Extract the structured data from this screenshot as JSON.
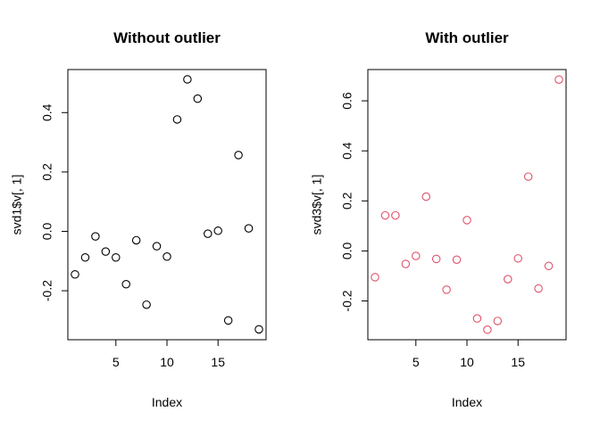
{
  "chart_data": [
    {
      "type": "scatter",
      "title": "Without outlier",
      "xlabel": "Index",
      "ylabel": "svd1$v[, 1]",
      "point_color": "#000000",
      "xlim": [
        0.3,
        19.7
      ],
      "ylim": [
        -0.365,
        0.545
      ],
      "x_ticks": [
        5,
        10,
        15
      ],
      "y_ticks": [
        -0.2,
        0.0,
        0.2,
        0.4
      ],
      "y_tick_labels": [
        "-0.2",
        "0.0",
        "0.2",
        "0.4"
      ],
      "x": [
        1,
        2,
        3,
        4,
        5,
        6,
        7,
        8,
        9,
        10,
        11,
        12,
        13,
        14,
        15,
        16,
        17,
        18,
        19
      ],
      "y": [
        -0.145,
        -0.088,
        -0.017,
        -0.068,
        -0.088,
        -0.178,
        -0.03,
        -0.247,
        -0.05,
        -0.085,
        0.377,
        0.512,
        0.447,
        -0.008,
        0.002,
        -0.3,
        0.257,
        0.01,
        -0.33
      ]
    },
    {
      "type": "scatter",
      "title": "With outlier",
      "xlabel": "Index",
      "ylabel": "svd3$v[, 1]",
      "point_color": "#DF536B",
      "xlim": [
        0.3,
        19.7
      ],
      "ylim": [
        -0.355,
        0.725
      ],
      "x_ticks": [
        5,
        10,
        15
      ],
      "y_ticks": [
        -0.2,
        0.0,
        0.2,
        0.4,
        0.6
      ],
      "y_tick_labels": [
        "-0.2",
        "0.0",
        "0.2",
        "0.4",
        "0.6"
      ],
      "x": [
        1,
        2,
        3,
        4,
        5,
        6,
        7,
        8,
        9,
        10,
        11,
        12,
        13,
        14,
        15,
        16,
        17,
        18,
        19
      ],
      "y": [
        -0.105,
        0.142,
        0.142,
        -0.052,
        -0.02,
        0.217,
        -0.032,
        -0.155,
        -0.035,
        0.123,
        -0.27,
        -0.315,
        -0.28,
        -0.113,
        -0.03,
        0.297,
        -0.15,
        -0.06,
        0.685
      ]
    }
  ]
}
